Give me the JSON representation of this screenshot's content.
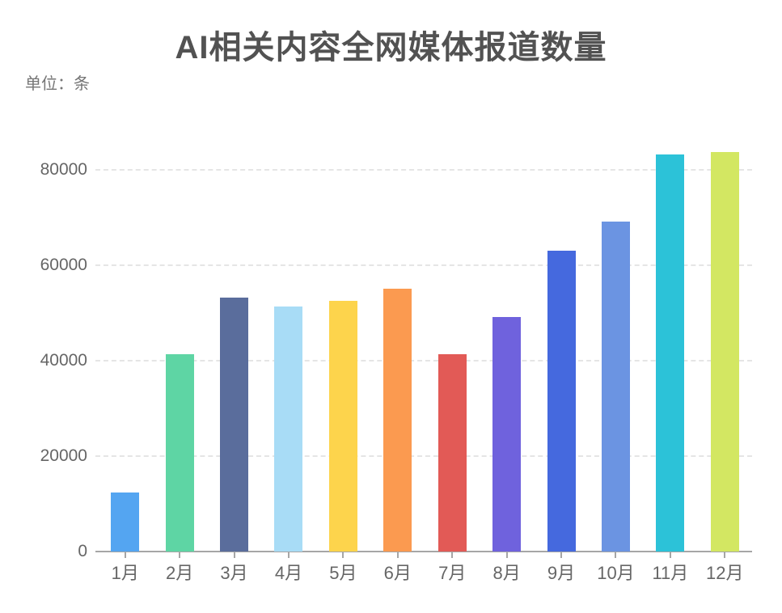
{
  "header": {
    "title": "AI相关内容全网媒体报道数量",
    "unit_label": "单位：条"
  },
  "chart_data": {
    "type": "bar",
    "title": "AI相关内容全网媒体报道数量",
    "subtitle_unit": "单位：条",
    "categories": [
      "1月",
      "2月",
      "3月",
      "4月",
      "5月",
      "6月",
      "7月",
      "8月",
      "9月",
      "10月",
      "11月",
      "12月"
    ],
    "values": [
      12400,
      41400,
      53200,
      51400,
      52500,
      55100,
      41400,
      49200,
      63000,
      69200,
      83200,
      83700
    ],
    "bar_colors": [
      "#54A5F1",
      "#5ED5A4",
      "#5A6D9C",
      "#A8DCF6",
      "#FDD44C",
      "#FB9A50",
      "#E25A56",
      "#6F62DD",
      "#4569DE",
      "#6B94E2",
      "#2CC2D8",
      "#D3E762"
    ],
    "xlabel": "",
    "ylabel": "单位：条",
    "yticks": [
      0,
      20000,
      40000,
      60000,
      80000
    ],
    "ylim": [
      0,
      90000
    ],
    "grid": "horizontal-dashed",
    "legend_position": "none",
    "styles": {
      "background": "#ffffff",
      "title_color": "#525252",
      "subtitle_color": "#757575",
      "axis_label_color": "#666666",
      "axis_line_color": "#a6a6a6",
      "grid_color": "#e5e5e5"
    }
  }
}
